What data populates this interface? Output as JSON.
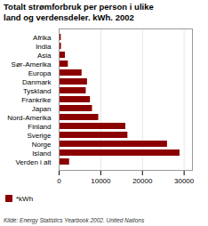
{
  "chart_data": {
    "type": "bar",
    "orientation": "horizontal",
    "title": "Totalt strømforbruk per person i ulike\nland og verdensdeler. kWh. 2002",
    "caption": "Kilde: Energy Statistics Yearbook 2002. United Nations",
    "categories": [
      "Afrika",
      "India",
      "Asia",
      "Sør-Amerika",
      "Europa",
      "Danmark",
      "Tyskland",
      "Frankrike",
      "Japan",
      "Nord-Amerika",
      "Finland",
      "Sverige",
      "Norge",
      "Island",
      "Verden i alt"
    ],
    "series": [
      {
        "name": "*kWh",
        "color": "#8B0000",
        "values": [
          500,
          550,
          1500,
          2200,
          5500,
          6800,
          6500,
          7500,
          8000,
          9500,
          16000,
          16500,
          26000,
          29000,
          2500
        ]
      }
    ],
    "xlim": [
      0,
      32000
    ],
    "xticks": [
      0,
      10000,
      20000,
      30000
    ],
    "grid": true,
    "legend": "bottom"
  }
}
